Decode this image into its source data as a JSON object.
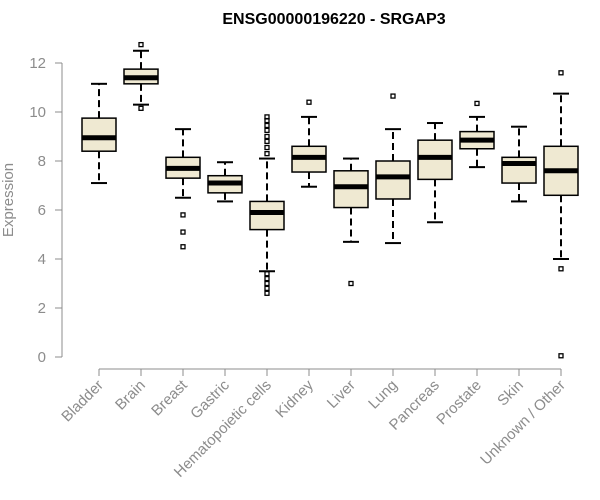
{
  "chart_data": {
    "type": "boxplot",
    "title": "ENSG00000196220 - SRGAP3",
    "ylabel": "Expression",
    "xlabel": "",
    "ylim": [
      0,
      12
    ],
    "yticks": [
      0,
      2,
      4,
      6,
      8,
      10,
      12
    ],
    "grid": false,
    "box_fill": "#efe9d2",
    "categories": [
      "Bladder",
      "Brain",
      "Breast",
      "Gastric",
      "Hematopoietic cells",
      "Kidney",
      "Liver",
      "Lung",
      "Pancreas",
      "Prostate",
      "Skin",
      "Unknown / Other"
    ],
    "boxes": [
      {
        "whisker_low": 7.1,
        "q1": 8.4,
        "median": 8.95,
        "q3": 9.75,
        "whisker_high": 11.15,
        "outliers": []
      },
      {
        "whisker_low": 10.3,
        "q1": 11.15,
        "median": 11.4,
        "q3": 11.75,
        "whisker_high": 12.5,
        "outliers": [
          10.15,
          12.75
        ]
      },
      {
        "whisker_low": 6.5,
        "q1": 7.3,
        "median": 7.7,
        "q3": 8.15,
        "whisker_high": 9.3,
        "outliers": [
          5.8,
          5.1,
          4.5
        ]
      },
      {
        "whisker_low": 6.35,
        "q1": 6.7,
        "median": 7.1,
        "q3": 7.4,
        "whisker_high": 7.95,
        "outliers": []
      },
      {
        "whisker_low": 3.5,
        "q1": 5.2,
        "median": 5.9,
        "q3": 6.35,
        "whisker_high": 8.1,
        "outliers": [
          8.3,
          8.55,
          8.8,
          9.0,
          9.25,
          9.45,
          9.65,
          9.8,
          3.4,
          3.2,
          3.0,
          2.8,
          2.6
        ]
      },
      {
        "whisker_low": 6.95,
        "q1": 7.55,
        "median": 8.15,
        "q3": 8.6,
        "whisker_high": 9.8,
        "outliers": [
          10.4
        ]
      },
      {
        "whisker_low": 4.7,
        "q1": 6.1,
        "median": 6.95,
        "q3": 7.6,
        "whisker_high": 8.1,
        "outliers": [
          3.0
        ]
      },
      {
        "whisker_low": 4.65,
        "q1": 6.45,
        "median": 7.35,
        "q3": 8.0,
        "whisker_high": 9.3,
        "outliers": [
          10.65
        ]
      },
      {
        "whisker_low": 5.5,
        "q1": 7.25,
        "median": 8.15,
        "q3": 8.85,
        "whisker_high": 9.55,
        "outliers": []
      },
      {
        "whisker_low": 7.75,
        "q1": 8.5,
        "median": 8.85,
        "q3": 9.2,
        "whisker_high": 9.8,
        "outliers": [
          10.35
        ]
      },
      {
        "whisker_low": 6.35,
        "q1": 7.1,
        "median": 7.9,
        "q3": 8.15,
        "whisker_high": 9.4,
        "outliers": []
      },
      {
        "whisker_low": 4.0,
        "q1": 6.6,
        "median": 7.6,
        "q3": 8.6,
        "whisker_high": 10.75,
        "outliers": [
          11.6,
          3.6,
          0.05
        ]
      }
    ]
  }
}
